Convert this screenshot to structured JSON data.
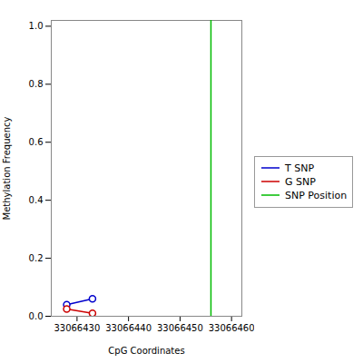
{
  "chart_data": {
    "type": "line",
    "xlabel": "CpG Coordinates",
    "ylabel": "Methylation Frequency",
    "x": [
      33066428,
      33066433
    ],
    "series": [
      {
        "name": "T SNP",
        "color": "#0000cc",
        "values": [
          0.04,
          0.06
        ]
      },
      {
        "name": "G SNP",
        "color": "#cc0000",
        "values": [
          0.025,
          0.01
        ]
      }
    ],
    "vlines": [
      {
        "name": "SNP Position",
        "color": "#00bb00",
        "value": 33066456
      }
    ],
    "marker": "open_circle",
    "xlim": [
      33066425,
      33066462
    ],
    "ylim": [
      0.0,
      1.02
    ],
    "xticks": [
      33066430,
      33066440,
      33066450,
      33066460
    ],
    "yticks": [
      {
        "value": 0.0,
        "label": "0.0"
      },
      0.2,
      0.4,
      0.6,
      0.8,
      {
        "value": 1.0,
        "label": "1.0"
      }
    ],
    "grid": false,
    "legend": "center right"
  }
}
